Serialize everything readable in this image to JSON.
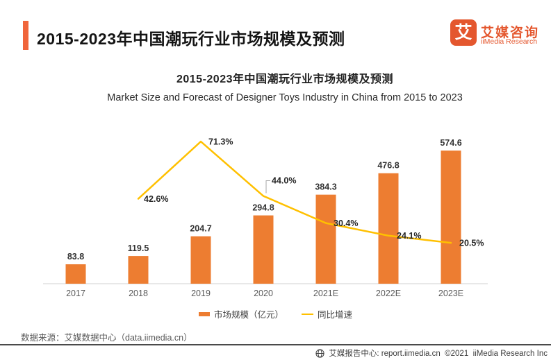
{
  "header": {
    "title": "2015-2023年中国潮玩行业市场规模及预测",
    "logo": {
      "glyph": "艾",
      "brand_cn": "艾媒咨询",
      "brand_en": "iiMedia Research"
    }
  },
  "chart": {
    "title_cn": "2015-2023年中国潮玩行业市场规模及预测",
    "title_en": "Market Size and Forecast of Designer Toys Industry in China from 2015 to 2023"
  },
  "legend": {
    "bar_label": "市场规模（亿元）",
    "line_label": "同比增速"
  },
  "source": "数据来源：艾媒数据中心（data.iimedia.cn）",
  "footer": {
    "text": "艾媒报告中心: report.iimedia.cn  ©2021  iiMedia Research Inc"
  },
  "colors": {
    "bar": "#ED7D31",
    "line": "#FFC000",
    "accent": "#E4572E",
    "axis": "#D9D9D9",
    "callout": "#A6A6A6"
  },
  "chart_data": {
    "type": "bar",
    "title": "2015-2023年中国潮玩行业市场规模及预测",
    "subtitle": "Market Size and Forecast of Designer Toys Industry in China from 2015 to 2023",
    "categories": [
      "2017",
      "2018",
      "2019",
      "2020",
      "2021E",
      "2022E",
      "2023E"
    ],
    "series": [
      {
        "name": "市场规模（亿元）",
        "type": "bar",
        "unit": "亿元",
        "color": "#ED7D31",
        "values": [
          83.8,
          119.5,
          204.7,
          294.8,
          384.3,
          476.8,
          574.6
        ]
      },
      {
        "name": "同比增速",
        "type": "line",
        "unit": "%",
        "color": "#FFC000",
        "values": [
          null,
          42.6,
          71.3,
          44.0,
          30.4,
          24.1,
          20.5
        ]
      }
    ],
    "xlabel": "",
    "ylabel": "",
    "grid": false,
    "value_labels": true,
    "legend_position": "bottom"
  }
}
